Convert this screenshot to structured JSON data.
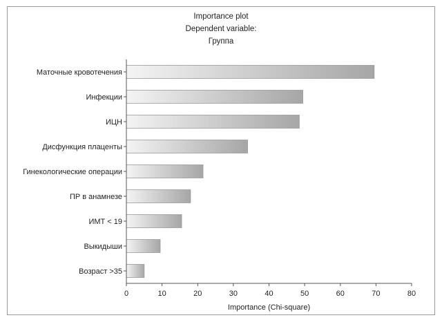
{
  "chart_data": {
    "type": "bar",
    "orientation": "horizontal",
    "title": "Importance plot",
    "subtitle_lines": [
      "Dependent variable:",
      "Группа"
    ],
    "xlabel": "Importance (Chi-square)",
    "ylabel": "",
    "xlim": [
      0,
      80
    ],
    "xticks": [
      0,
      10,
      20,
      30,
      40,
      50,
      60,
      70,
      80
    ],
    "grid": false,
    "categories": [
      "Маточные кровотечения",
      "Инфекции",
      "ИЦН",
      "Дисфункция плаценты",
      "Гинекологические операции",
      "ПР в анамнезе",
      "ИМТ < 19",
      "Выкидыши",
      "Возраст >35"
    ],
    "values": [
      69.5,
      49.5,
      48.5,
      34,
      21.5,
      18,
      15.5,
      9.5,
      5
    ],
    "bar_gradient": {
      "start": "#f4f4f4",
      "end": "#a6a6a6"
    },
    "bar_border": "#9a9a9a"
  }
}
